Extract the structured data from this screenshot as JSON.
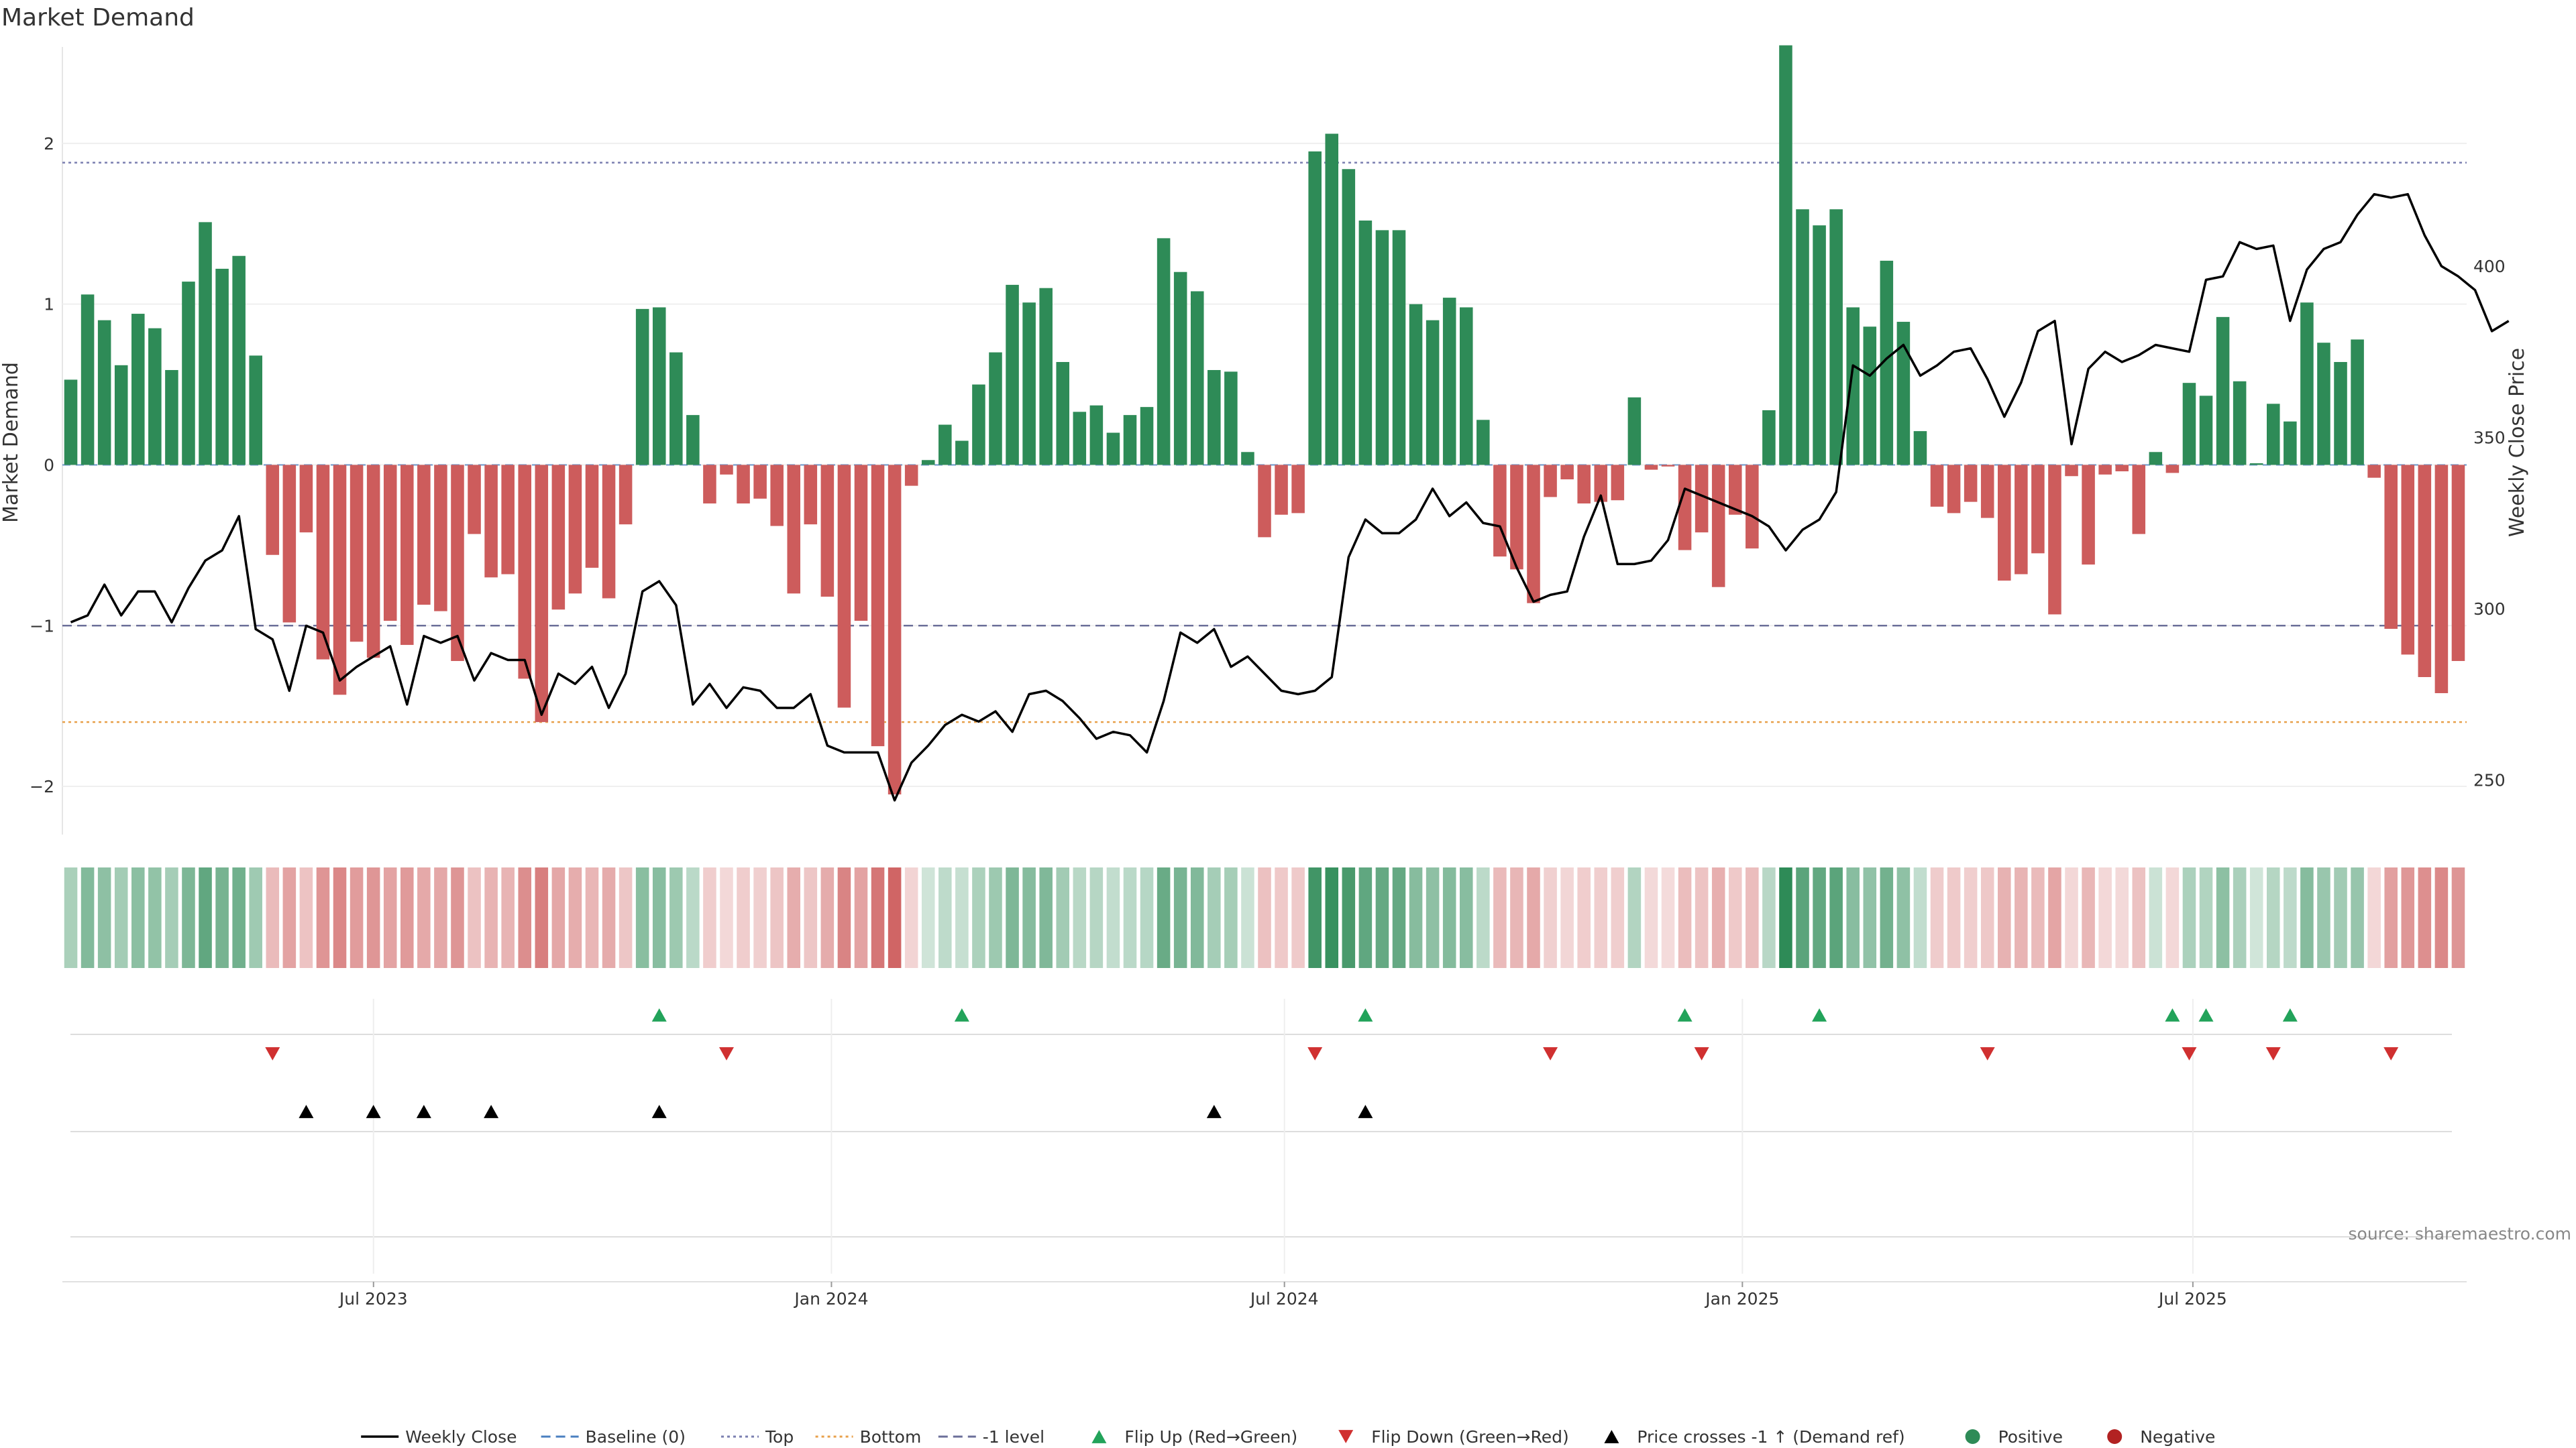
{
  "chart_data": {
    "type": "bar",
    "title": "Market Demand",
    "ylabel": "Market Demand",
    "y2label": "Weekly Close Price",
    "ylim": [
      -2.3,
      2.6
    ],
    "y_ticks": [
      2,
      1,
      0,
      -1,
      -2
    ],
    "y_tick_labels": [
      "2",
      "1",
      "0",
      "−1",
      "−2"
    ],
    "y2lim": [
      234,
      464
    ],
    "y2_ticks": [
      400,
      350,
      300,
      250
    ],
    "y2_tick_labels": [
      "400",
      "350",
      "300",
      "250"
    ],
    "x_date_ticks": [
      {
        "label": "Jul 2023",
        "date": "2023-07-01"
      },
      {
        "label": "Jan 2024",
        "date": "2024-01-01"
      },
      {
        "label": "Jul 2024",
        "date": "2024-07-01"
      },
      {
        "label": "Jan 2025",
        "date": "2025-01-01"
      },
      {
        "label": "Jul 2025",
        "date": "2025-07-01"
      }
    ],
    "x_start": "2023-02-26",
    "x_end": "2025-10-19",
    "reference_lines": [
      {
        "name": "Top",
        "value": 1.88,
        "color": "#7b7fb0",
        "style": "dotted"
      },
      {
        "name": "-1 level",
        "value": -1.0,
        "color": "#6b6f99",
        "style": "dashed"
      },
      {
        "name": "Bottom",
        "value": -1.6,
        "color": "#e8a04a",
        "style": "dotted"
      },
      {
        "name": "Baseline (0)",
        "value": 0,
        "color": "#4a7fc0",
        "style": "dashed"
      }
    ],
    "series": [
      {
        "name": "Market Demand",
        "values": [
          0.53,
          1.06,
          0.9,
          0.62,
          0.94,
          0.85,
          0.59,
          1.14,
          1.51,
          1.22,
          1.3,
          0.68,
          -0.56,
          -0.98,
          -0.42,
          -1.21,
          -1.43,
          -1.1,
          -1.2,
          -0.97,
          -1.12,
          -0.87,
          -0.91,
          -1.22,
          -0.43,
          -0.7,
          -0.68,
          -1.33,
          -1.6,
          -0.9,
          -0.8,
          -0.64,
          -0.83,
          -0.37,
          0.97,
          0.98,
          0.7,
          0.31,
          -0.24,
          -0.06,
          -0.24,
          -0.21,
          -0.38,
          -0.8,
          -0.37,
          -0.82,
          -1.51,
          -0.97,
          -1.75,
          -2.05,
          -0.13,
          0.03,
          0.25,
          0.15,
          0.5,
          0.7,
          1.12,
          1.01,
          1.1,
          0.64,
          0.33,
          0.37,
          0.2,
          0.31,
          0.36,
          1.41,
          1.2,
          1.08,
          0.59,
          0.58,
          0.08,
          -0.45,
          -0.31,
          -0.3,
          1.95,
          2.06,
          1.84,
          1.52,
          1.46,
          1.46,
          1.0,
          0.9,
          1.04,
          0.98,
          0.28,
          -0.57,
          -0.65,
          -0.86,
          -0.2,
          -0.09,
          -0.24,
          -0.23,
          -0.22,
          0.42,
          -0.03,
          -0.01,
          -0.53,
          -0.42,
          -0.76,
          -0.31,
          -0.52,
          0.34,
          2.61,
          1.59,
          1.49,
          1.59,
          0.98,
          0.86,
          1.27,
          0.89,
          0.21,
          -0.26,
          -0.3,
          -0.23,
          -0.33,
          -0.72,
          -0.68,
          -0.55,
          -0.93,
          -0.07,
          -0.62,
          -0.06,
          -0.04,
          -0.43,
          0.08,
          -0.05,
          0.51,
          0.43,
          0.92,
          0.52,
          0.01,
          0.38,
          0.27,
          1.01,
          0.76,
          0.64,
          0.78,
          -0.08,
          -1.02,
          -1.18,
          -1.32,
          -1.42,
          -1.22
        ]
      },
      {
        "name": "Weekly Close",
        "values": [
          296,
          298,
          307,
          298,
          305,
          305,
          296,
          306,
          314,
          317,
          327,
          294,
          291,
          276,
          295,
          293,
          279,
          283,
          286,
          289,
          272,
          292,
          290,
          292,
          279,
          287,
          285,
          285,
          269,
          281,
          278,
          283,
          271,
          281,
          305,
          308,
          301,
          272,
          278,
          271,
          277,
          276,
          271,
          271,
          275,
          260,
          258,
          258,
          258,
          244,
          255,
          260,
          266,
          269,
          267,
          270,
          264,
          275,
          276,
          273,
          268,
          262,
          264,
          263,
          258,
          273,
          293,
          290,
          294,
          283,
          286,
          281,
          276,
          275,
          276,
          280,
          315,
          326,
          322,
          322,
          326,
          335,
          327,
          331,
          325,
          324,
          312,
          302,
          304,
          305,
          321,
          333,
          313,
          313,
          314,
          320,
          335,
          333,
          331,
          329,
          327,
          324,
          317,
          323,
          326,
          334,
          371,
          368,
          373,
          377,
          368,
          371,
          375,
          376,
          367,
          356,
          366,
          381,
          384,
          348,
          370,
          375,
          372,
          374,
          377,
          376,
          375,
          396,
          397,
          407,
          405,
          406,
          384,
          399,
          405,
          407,
          415,
          421,
          420,
          421,
          409,
          400,
          397,
          393,
          381,
          384
        ]
      }
    ],
    "color_strip": {
      "green": "#2e8b57",
      "red": "#cd5c5c"
    },
    "markers": {
      "flip_up_indices": [
        35,
        53,
        77,
        96,
        104,
        125,
        127,
        132
      ],
      "flip_down_indices": [
        12,
        39,
        74,
        88,
        97,
        114,
        126,
        131,
        138
      ],
      "price_cross_indices": [
        14,
        18,
        21,
        25,
        35,
        68,
        77
      ]
    },
    "colors": {
      "positive": "#2e8b57",
      "negative": "#cd5c5c",
      "price_line": "#000000",
      "flip_up": "#22a35a",
      "flip_down": "#d03030",
      "cross": "#000000"
    }
  },
  "legend": [
    {
      "label": "Weekly Close",
      "kind": "line",
      "color": "#000000"
    },
    {
      "label": "Baseline (0)",
      "kind": "dash",
      "color": "#4a7fc0"
    },
    {
      "label": "Top",
      "kind": "dot",
      "color": "#7b7fb0"
    },
    {
      "label": "Bottom",
      "kind": "dot",
      "color": "#e8a04a"
    },
    {
      "label": "-1 level",
      "kind": "dash",
      "color": "#6b6f99"
    },
    {
      "label": "Flip Up (Red→Green)",
      "kind": "tri-up",
      "color": "#22a35a"
    },
    {
      "label": "Flip Down (Green→Red)",
      "kind": "tri-down",
      "color": "#d03030"
    },
    {
      "label": "Price crosses -1 ↑ (Demand ref)",
      "kind": "tri-up",
      "color": "#000000"
    },
    {
      "label": "Positive",
      "kind": "dot-marker",
      "color": "#2e8b57"
    },
    {
      "label": "Negative",
      "kind": "dot-marker",
      "color": "#b22222"
    }
  ],
  "source": "source: sharemaestro.com"
}
